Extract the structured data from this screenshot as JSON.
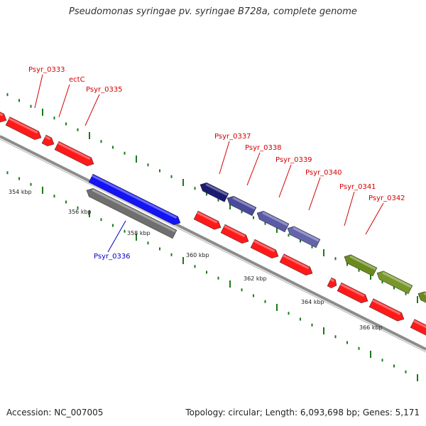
{
  "title": "Pseudomonas syringae pv. syringae B728a, complete genome",
  "footer": {
    "accession": "Accession: NC_007005",
    "topology": "Topology: circular; Length: 6,093,698 bp; Genes: 5,171"
  },
  "colors": {
    "backbone": "#8c8c8c",
    "forward_cds": "#ff1a1a",
    "outer_tick": "#1a7a1a",
    "label_default": "#d40000",
    "label_highlight": "#0000c0"
  },
  "scale_labels": [
    "354 kbp",
    "356 kbp",
    "358 kbp",
    "360 kbp",
    "362 kbp",
    "364 kbp",
    "366 kbp"
  ],
  "gene_labels": [
    {
      "text": "Psyr_0333",
      "color": "#d40000"
    },
    {
      "text": "ectC",
      "color": "#d40000"
    },
    {
      "text": "Psyr_0335",
      "color": "#d40000"
    },
    {
      "text": "Psyr_0337",
      "color": "#d40000"
    },
    {
      "text": "Psyr_0338",
      "color": "#d40000"
    },
    {
      "text": "Psyr_0339",
      "color": "#d40000"
    },
    {
      "text": "Psyr_0340",
      "color": "#d40000"
    },
    {
      "text": "Psyr_0341",
      "color": "#d40000"
    },
    {
      "text": "Psyr_0342",
      "color": "#d40000"
    },
    {
      "text": "Psyr_0336",
      "color": "#0000c0"
    }
  ]
}
